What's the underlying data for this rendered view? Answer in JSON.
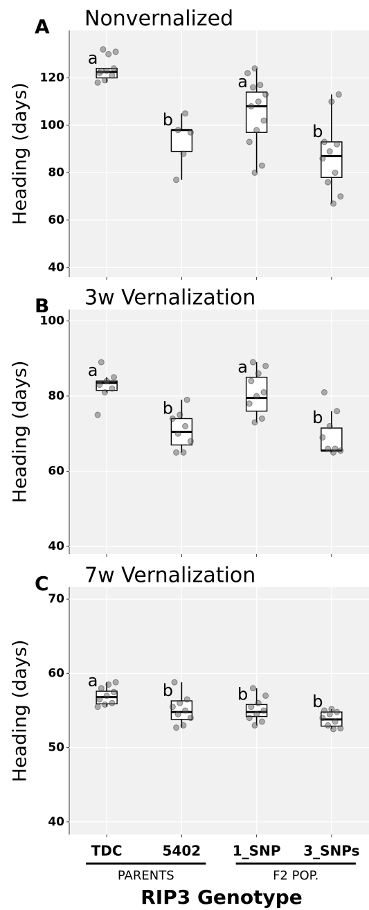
{
  "chart_data": [
    {
      "type": "box",
      "panel": "A",
      "title": "Nonvernalized",
      "ylabel": "Heading (days)",
      "ylim": [
        36,
        140
      ],
      "yticks": [
        40,
        60,
        80,
        100,
        120
      ],
      "grid": true,
      "boxes": [
        {
          "min": 118,
          "q1": 120,
          "median": 122.5,
          "q3": 124,
          "max": 124,
          "letter": "a",
          "points": [
            118,
            119,
            121,
            122,
            123,
            124,
            123,
            130,
            131,
            132
          ]
        },
        {
          "min": 77,
          "q1": 89,
          "median": 98,
          "q3": 98,
          "max": 105,
          "letter": "b",
          "points": [
            77,
            88,
            97,
            98,
            105
          ]
        },
        {
          "min": 80,
          "q1": 97,
          "median": 108,
          "q3": 114,
          "max": 124,
          "letter": "a",
          "points": [
            80,
            83,
            93,
            98,
            102,
            108,
            110,
            113,
            116,
            117,
            122,
            124
          ]
        },
        {
          "min": 67,
          "q1": 78,
          "median": 87,
          "q3": 93,
          "max": 113,
          "letter": "b",
          "points": [
            67,
            70,
            76,
            80,
            86,
            89,
            92,
            93,
            110,
            113
          ]
        }
      ]
    },
    {
      "type": "box",
      "panel": "B",
      "title": "3w Vernalization",
      "ylabel": "Heading (days)",
      "ylim": [
        38,
        103
      ],
      "yticks": [
        40,
        60,
        80,
        100
      ],
      "grid": true,
      "boxes": [
        {
          "min": 81,
          "q1": 81.5,
          "median": 83.5,
          "q3": 84,
          "max": 85,
          "letter": "a",
          "points": [
            75,
            81,
            82,
            83,
            84,
            85,
            89
          ]
        },
        {
          "min": 65,
          "q1": 67,
          "median": 70.5,
          "q3": 74,
          "max": 79,
          "letter": "b",
          "points": [
            65,
            65,
            68,
            70,
            72,
            74,
            75,
            79
          ]
        },
        {
          "min": 73,
          "q1": 76,
          "median": 79.5,
          "q3": 85,
          "max": 89,
          "letter": "a",
          "points": [
            73,
            74,
            78,
            80,
            81,
            84,
            86,
            88,
            89
          ]
        },
        {
          "min": 65,
          "q1": 65.5,
          "median": 65.5,
          "q3": 71.5,
          "max": 76,
          "letter": "b",
          "points": [
            65,
            65.5,
            66,
            66,
            69,
            72,
            76,
            81
          ]
        }
      ]
    },
    {
      "type": "box",
      "panel": "C",
      "title": "7w Vernalization",
      "ylabel": "Heading (days)",
      "ylim": [
        38.3,
        71.6
      ],
      "yticks": [
        40,
        50,
        60,
        70
      ],
      "grid": true,
      "categories": [
        "TDC",
        "5402",
        "1_SNP",
        "3_SNPs"
      ],
      "groups": [
        "PARENTS",
        "F2 POP."
      ],
      "xlabel": "RIP3 Genotype",
      "boxes": [
        {
          "min": 55.5,
          "q1": 55.9,
          "median": 56.8,
          "q3": 57.6,
          "max": 58.8,
          "letter": "a",
          "points": [
            55.5,
            55.8,
            56,
            56.5,
            57,
            57.5,
            58,
            58.5,
            58.8
          ]
        },
        {
          "min": 52.7,
          "q1": 53.8,
          "median": 54.8,
          "q3": 56.3,
          "max": 58.8,
          "letter": "b",
          "points": [
            52.7,
            53,
            54,
            54.5,
            55,
            55.5,
            56,
            56.5,
            58.8
          ]
        },
        {
          "min": 53,
          "q1": 54.2,
          "median": 54.8,
          "q3": 55.8,
          "max": 58,
          "letter": "b",
          "points": [
            53,
            53.5,
            54,
            54.5,
            55,
            55.5,
            56,
            57,
            58
          ]
        },
        {
          "min": 52.5,
          "q1": 52.9,
          "median": 53.8,
          "q3": 54.8,
          "max": 55.2,
          "letter": "b",
          "points": [
            52.5,
            52.6,
            53,
            53.5,
            54,
            54.5,
            54.8,
            55,
            55.2
          ]
        }
      ]
    }
  ]
}
